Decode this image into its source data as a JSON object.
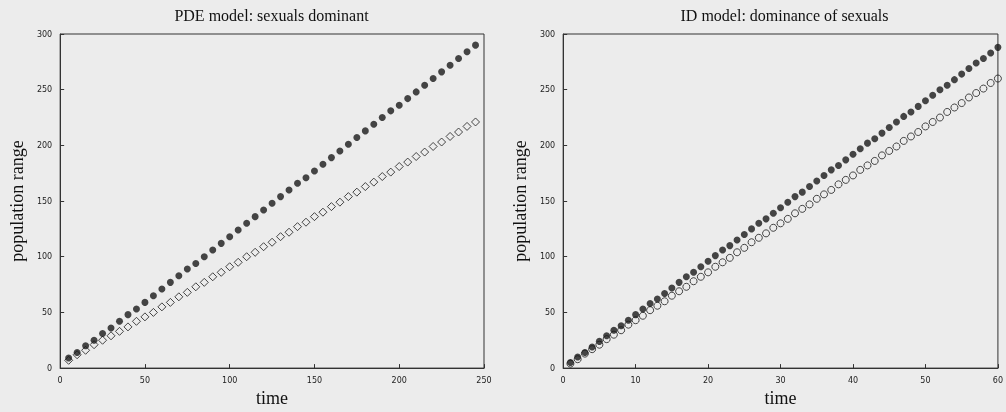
{
  "chart_data": [
    {
      "type": "scatter",
      "title": "PDE model: sexuals dominant",
      "xlabel": "time",
      "ylabel": "population range",
      "x": [
        5,
        10,
        15,
        20,
        25,
        30,
        35,
        40,
        45,
        50,
        55,
        60,
        65,
        70,
        75,
        80,
        85,
        90,
        95,
        100,
        105,
        110,
        115,
        120,
        125,
        130,
        135,
        140,
        145,
        150,
        155,
        160,
        165,
        170,
        175,
        180,
        185,
        190,
        195,
        200,
        205,
        210,
        215,
        220,
        225,
        230,
        235,
        240,
        245
      ],
      "series": [
        {
          "color": "#1a1a1a",
          "marker": "circle",
          "values": [
            9,
            14,
            20,
            25,
            31,
            36,
            42,
            48,
            53,
            59,
            65,
            71,
            77,
            83,
            89,
            94,
            100,
            106,
            112,
            118,
            124,
            130,
            136,
            142,
            148,
            154,
            160,
            166,
            171,
            177,
            183,
            189,
            195,
            201,
            207,
            213,
            219,
            225,
            231,
            236,
            242,
            248,
            254,
            260,
            266,
            272,
            278,
            284,
            290
          ]
        },
        {
          "color": "#1a1a1a",
          "marker": "diamond",
          "values": [
            7,
            12,
            16,
            21,
            25,
            29,
            33,
            37,
            42,
            46,
            50,
            55,
            59,
            64,
            68,
            73,
            77,
            82,
            86,
            91,
            95,
            100,
            104,
            109,
            113,
            118,
            122,
            127,
            131,
            136,
            140,
            145,
            149,
            154,
            158,
            163,
            167,
            172,
            176,
            181,
            185,
            190,
            194,
            199,
            203,
            208,
            212,
            217,
            221
          ]
        }
      ],
      "xlim": [
        0,
        250
      ],
      "xticks": [
        0,
        50,
        100,
        150,
        200,
        250
      ],
      "ylim": [
        0,
        300
      ],
      "yticks": [
        0,
        50,
        100,
        150,
        200,
        250,
        300
      ]
    },
    {
      "type": "scatter",
      "title": "ID model: dominance of sexuals",
      "xlabel": "time",
      "ylabel": "population range",
      "x": [
        1,
        2,
        3,
        4,
        5,
        6,
        7,
        8,
        9,
        10,
        11,
        12,
        13,
        14,
        15,
        16,
        17,
        18,
        19,
        20,
        21,
        22,
        23,
        24,
        25,
        26,
        27,
        28,
        29,
        30,
        31,
        32,
        33,
        34,
        35,
        36,
        37,
        38,
        39,
        40,
        41,
        42,
        43,
        44,
        45,
        46,
        47,
        48,
        49,
        50,
        51,
        52,
        53,
        54,
        55,
        56,
        57,
        58,
        59,
        60
      ],
      "series": [
        {
          "color": "#1a1a1a",
          "marker": "circle",
          "values": [
            5,
            10,
            14,
            19,
            24,
            29,
            34,
            38,
            43,
            48,
            53,
            58,
            62,
            67,
            72,
            77,
            82,
            86,
            91,
            96,
            101,
            106,
            110,
            115,
            120,
            125,
            130,
            134,
            139,
            144,
            149,
            154,
            158,
            163,
            168,
            173,
            178,
            182,
            187,
            192,
            197,
            202,
            206,
            211,
            216,
            221,
            226,
            230,
            235,
            240,
            245,
            250,
            254,
            259,
            264,
            269,
            274,
            278,
            283,
            288
          ]
        },
        {
          "color": "#1a1a1a",
          "marker": "circle",
          "values": [
            4,
            8,
            13,
            17,
            21,
            26,
            30,
            34,
            39,
            43,
            47,
            52,
            56,
            60,
            65,
            69,
            73,
            78,
            82,
            86,
            91,
            95,
            99,
            104,
            108,
            113,
            117,
            121,
            126,
            130,
            134,
            139,
            143,
            147,
            152,
            156,
            160,
            165,
            169,
            173,
            178,
            182,
            186,
            191,
            195,
            199,
            204,
            208,
            212,
            217,
            221,
            225,
            230,
            234,
            238,
            243,
            247,
            251,
            256,
            260
          ]
        }
      ],
      "xlim": [
        0,
        60
      ],
      "xticks": [
        0,
        10,
        20,
        30,
        40,
        50,
        60
      ],
      "ylim": [
        0,
        300
      ],
      "yticks": [
        0,
        50,
        100,
        150,
        200,
        250,
        300
      ]
    }
  ]
}
